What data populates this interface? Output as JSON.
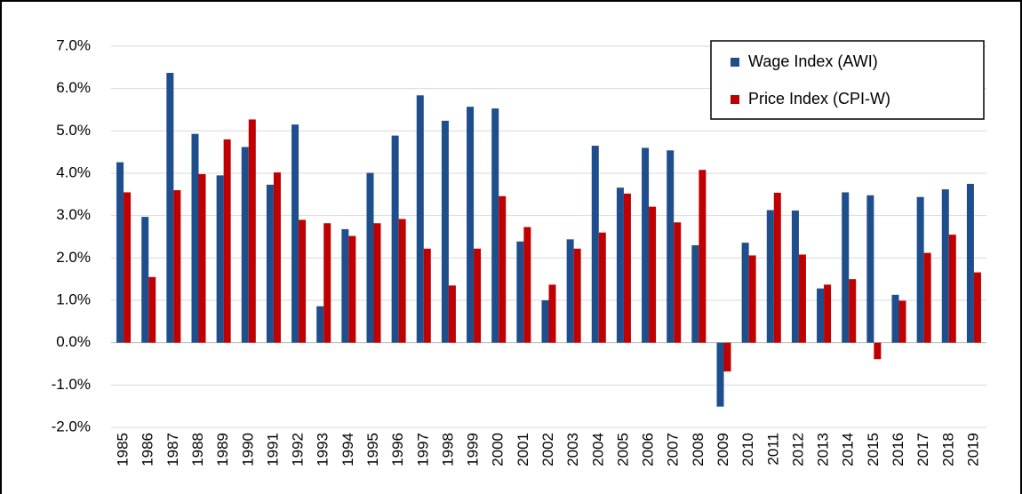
{
  "chart_data": {
    "type": "bar",
    "categories": [
      "1985",
      "1986",
      "1987",
      "1988",
      "1989",
      "1990",
      "1991",
      "1992",
      "1993",
      "1994",
      "1995",
      "1996",
      "1997",
      "1998",
      "1999",
      "2000",
      "2001",
      "2002",
      "2003",
      "2004",
      "2005",
      "2006",
      "2007",
      "2008",
      "2009",
      "2010",
      "2011",
      "2012",
      "2013",
      "2014",
      "2015",
      "2016",
      "2017",
      "2018",
      "2019"
    ],
    "series": [
      {
        "name": "Wage Index (AWI)",
        "color": "#1f4e8c",
        "values": [
          4.26,
          2.97,
          6.37,
          4.93,
          3.95,
          4.62,
          3.73,
          5.15,
          0.86,
          2.68,
          4.01,
          4.89,
          5.84,
          5.24,
          5.57,
          5.53,
          2.39,
          1.0,
          2.44,
          4.65,
          3.66,
          4.6,
          4.54,
          2.3,
          -1.51,
          2.36,
          3.13,
          3.12,
          1.28,
          3.55,
          3.48,
          1.13,
          3.44,
          3.62,
          3.75
        ]
      },
      {
        "name": "Price Index (CPI-W)",
        "color": "#c00000",
        "values": [
          3.55,
          1.55,
          3.6,
          3.98,
          4.8,
          5.27,
          4.02,
          2.9,
          2.82,
          2.52,
          2.82,
          2.92,
          2.22,
          1.35,
          2.22,
          3.46,
          2.73,
          1.37,
          2.22,
          2.6,
          3.52,
          3.21,
          2.84,
          4.08,
          -0.68,
          2.06,
          3.54,
          2.08,
          1.37,
          1.5,
          -0.39,
          0.99,
          2.12,
          2.55,
          1.66
        ]
      }
    ],
    "ylim": [
      -2,
      7
    ],
    "yticks": [
      {
        "value": -2,
        "label": "-2.0%"
      },
      {
        "value": -1,
        "label": "-1.0%"
      },
      {
        "value": 0,
        "label": "0.0%"
      },
      {
        "value": 1,
        "label": "1.0%"
      },
      {
        "value": 2,
        "label": "2.0%"
      },
      {
        "value": 3,
        "label": "3.0%"
      },
      {
        "value": 4,
        "label": "4.0%"
      },
      {
        "value": 5,
        "label": "5.0%"
      },
      {
        "value": 6,
        "label": "6.0%"
      },
      {
        "value": 7,
        "label": "7.0%"
      }
    ],
    "grid": true,
    "legend": "upper right"
  }
}
